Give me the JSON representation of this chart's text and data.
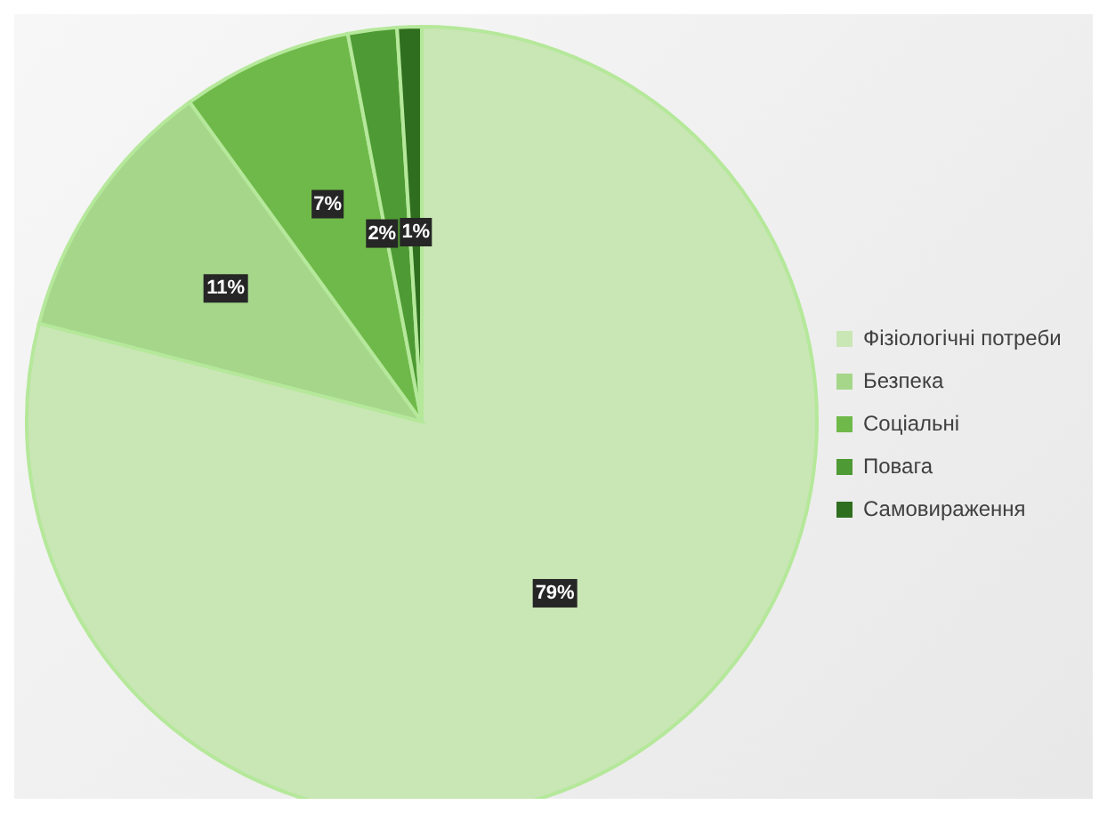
{
  "chart_data": {
    "type": "pie",
    "categories": [
      "Фізіологічні потреби",
      "Безпека",
      "Соціальні",
      "Повага",
      "Самовираження"
    ],
    "values": [
      79,
      11,
      7,
      2,
      1
    ],
    "colors": [
      "#c9e6b5",
      "#a5d68a",
      "#6fb94a",
      "#4e9a34",
      "#2f6e1f"
    ],
    "value_labels": [
      "79%",
      "11%",
      "7%",
      "2%",
      "1%"
    ],
    "legend": "right"
  }
}
